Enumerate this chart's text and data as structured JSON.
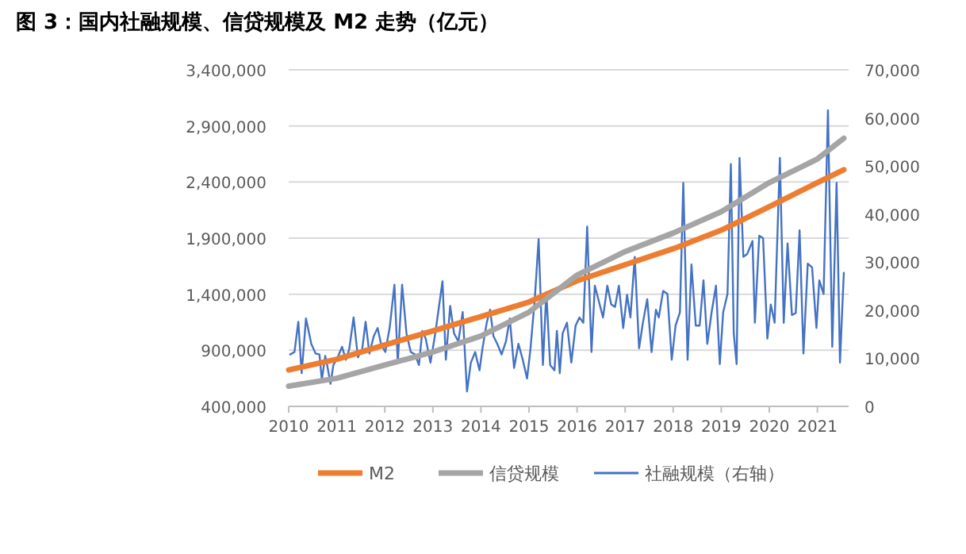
{
  "chart_data": {
    "type": "line",
    "title": "图 3：国内社融规模、信贷规模及 M2 走势（亿元）",
    "xlim": [
      2010,
      2021.65
    ],
    "xticks": [
      2010,
      2011,
      2012,
      2013,
      2014,
      2015,
      2016,
      2017,
      2018,
      2019,
      2020,
      2021
    ],
    "ylim": [
      400000,
      3400000
    ],
    "yticks": [
      {
        "value": 400000,
        "label": "400,000"
      },
      {
        "value": 900000,
        "label": "900,000"
      },
      {
        "value": 1400000,
        "label": "1,400,000"
      },
      {
        "value": 1900000,
        "label": "1,900,000"
      },
      {
        "value": 2400000,
        "label": "2,400,000"
      },
      {
        "value": 2900000,
        "label": "2,900,000"
      },
      {
        "value": 3400000,
        "label": "3,400,000"
      }
    ],
    "y2lim": [
      0,
      70000
    ],
    "y2ticks": [
      0,
      {
        "value": 10000,
        "label": "10,000"
      },
      {
        "value": 20000,
        "label": "20,000"
      },
      {
        "value": 30000,
        "label": "30,000"
      },
      {
        "value": 40000,
        "label": "40,000"
      },
      {
        "value": 50000,
        "label": "50,000"
      },
      {
        "value": 60000,
        "label": "60,000"
      },
      {
        "value": 70000,
        "label": "70,000"
      }
    ],
    "grid": "y",
    "legend": "bottom",
    "series": [
      {
        "name": "M2",
        "color": "#ed7d31",
        "x": [
          2010,
          2011,
          2012,
          2013,
          2014,
          2015,
          2016,
          2017,
          2018,
          2019,
          2020,
          2021,
          2021.55
        ],
        "values": [
          725000,
          820000,
          947000,
          1073000,
          1200000,
          1330000,
          1520000,
          1663000,
          1805000,
          1970000,
          2180000,
          2395000,
          2510000
        ]
      },
      {
        "name": "信贷规模",
        "color": "#a5a5a5",
        "x": [
          2010,
          2011,
          2012,
          2013,
          2014,
          2015,
          2016,
          2017,
          2018,
          2019,
          2020,
          2021,
          2021.55
        ],
        "values": [
          580000,
          650000,
          768000,
          885000,
          1027000,
          1240000,
          1570000,
          1780000,
          1945000,
          2135000,
          2395000,
          2605000,
          2790000
        ]
      },
      {
        "name": "社融规模（右轴）",
        "color": "#4472c4",
        "axis": "y2",
        "x": [
          2010.03,
          2010.12,
          2010.2,
          2010.27,
          2010.36,
          2010.47,
          2010.56,
          2010.64,
          2010.69,
          2010.76,
          2010.8,
          2010.87,
          2010.93,
          2011.02,
          2011.11,
          2011.19,
          2011.26,
          2011.35,
          2011.44,
          2011.53,
          2011.6,
          2011.68,
          2011.77,
          2011.85,
          2011.92,
          2012.01,
          2012.1,
          2012.2,
          2012.27,
          2012.36,
          2012.45,
          2012.54,
          2012.63,
          2012.71,
          2012.78,
          2012.85,
          2012.95,
          2013.05,
          2013.2,
          2013.27,
          2013.36,
          2013.44,
          2013.53,
          2013.62,
          2013.71,
          2013.79,
          2013.88,
          2013.97,
          2014.03,
          2014.12,
          2014.19,
          2014.26,
          2014.34,
          2014.43,
          2014.52,
          2014.6,
          2014.69,
          2014.78,
          2014.87,
          2014.96,
          2015.03,
          2015.12,
          2015.2,
          2015.29,
          2015.36,
          2015.44,
          2015.53,
          2015.58,
          2015.64,
          2015.7,
          2015.79,
          2015.88,
          2015.97,
          2016.05,
          2016.13,
          2016.21,
          2016.3,
          2016.37,
          2016.45,
          2016.54,
          2016.63,
          2016.71,
          2016.79,
          2016.87,
          2016.96,
          2017.04,
          2017.11,
          2017.2,
          2017.29,
          2017.37,
          2017.46,
          2017.55,
          2017.64,
          2017.7,
          2017.79,
          2017.88,
          2017.97,
          2018.05,
          2018.14,
          2018.21,
          2018.3,
          2018.38,
          2018.47,
          2018.55,
          2018.63,
          2018.71,
          2018.8,
          2018.89,
          2018.97,
          2019.04,
          2019.13,
          2019.2,
          2019.26,
          2019.32,
          2019.38,
          2019.46,
          2019.54,
          2019.65,
          2019.7,
          2019.79,
          2019.87,
          2019.96,
          2020.03,
          2020.11,
          2020.22,
          2020.3,
          2020.38,
          2020.47,
          2020.55,
          2020.63,
          2020.71,
          2020.8,
          2020.89,
          2020.98,
          2021.04,
          2021.13,
          2021.22,
          2021.31,
          2021.4,
          2021.47,
          2021.55
        ],
        "values": [
          10800,
          11300,
          17600,
          6900,
          18300,
          13000,
          11000,
          10800,
          5500,
          10500,
          8600,
          4700,
          8600,
          10200,
          12400,
          9700,
          11900,
          18500,
          10200,
          11900,
          17600,
          11000,
          14600,
          16300,
          13000,
          11300,
          16300,
          25300,
          9100,
          25300,
          15200,
          11300,
          10800,
          8600,
          15700,
          14100,
          9100,
          15200,
          26000,
          9700,
          20900,
          15200,
          13500,
          19600,
          3100,
          9100,
          11300,
          7500,
          11900,
          17400,
          20100,
          14600,
          13000,
          10800,
          13500,
          18300,
          8000,
          13000,
          9700,
          5800,
          11900,
          22300,
          34800,
          8600,
          23800,
          8600,
          7500,
          15700,
          6900,
          15200,
          17400,
          9100,
          16800,
          18500,
          17400,
          37400,
          11300,
          25100,
          22000,
          18500,
          25100,
          21200,
          20700,
          25100,
          16300,
          23200,
          18500,
          31100,
          12100,
          17400,
          22300,
          11300,
          20100,
          18500,
          24000,
          23400,
          9700,
          16800,
          19600,
          46500,
          9700,
          29500,
          16800,
          16800,
          26200,
          13000,
          19600,
          25100,
          8800,
          19600,
          23400,
          50400,
          15200,
          8800,
          51700,
          31100,
          31700,
          34400,
          17400,
          35500,
          35000,
          14100,
          21200,
          17400,
          51700,
          17400,
          33900,
          19000,
          19400,
          36600,
          11000,
          29700,
          28900,
          16300,
          26200,
          23400,
          61600,
          12400,
          46500,
          9100,
          27800
        ]
      }
    ]
  }
}
